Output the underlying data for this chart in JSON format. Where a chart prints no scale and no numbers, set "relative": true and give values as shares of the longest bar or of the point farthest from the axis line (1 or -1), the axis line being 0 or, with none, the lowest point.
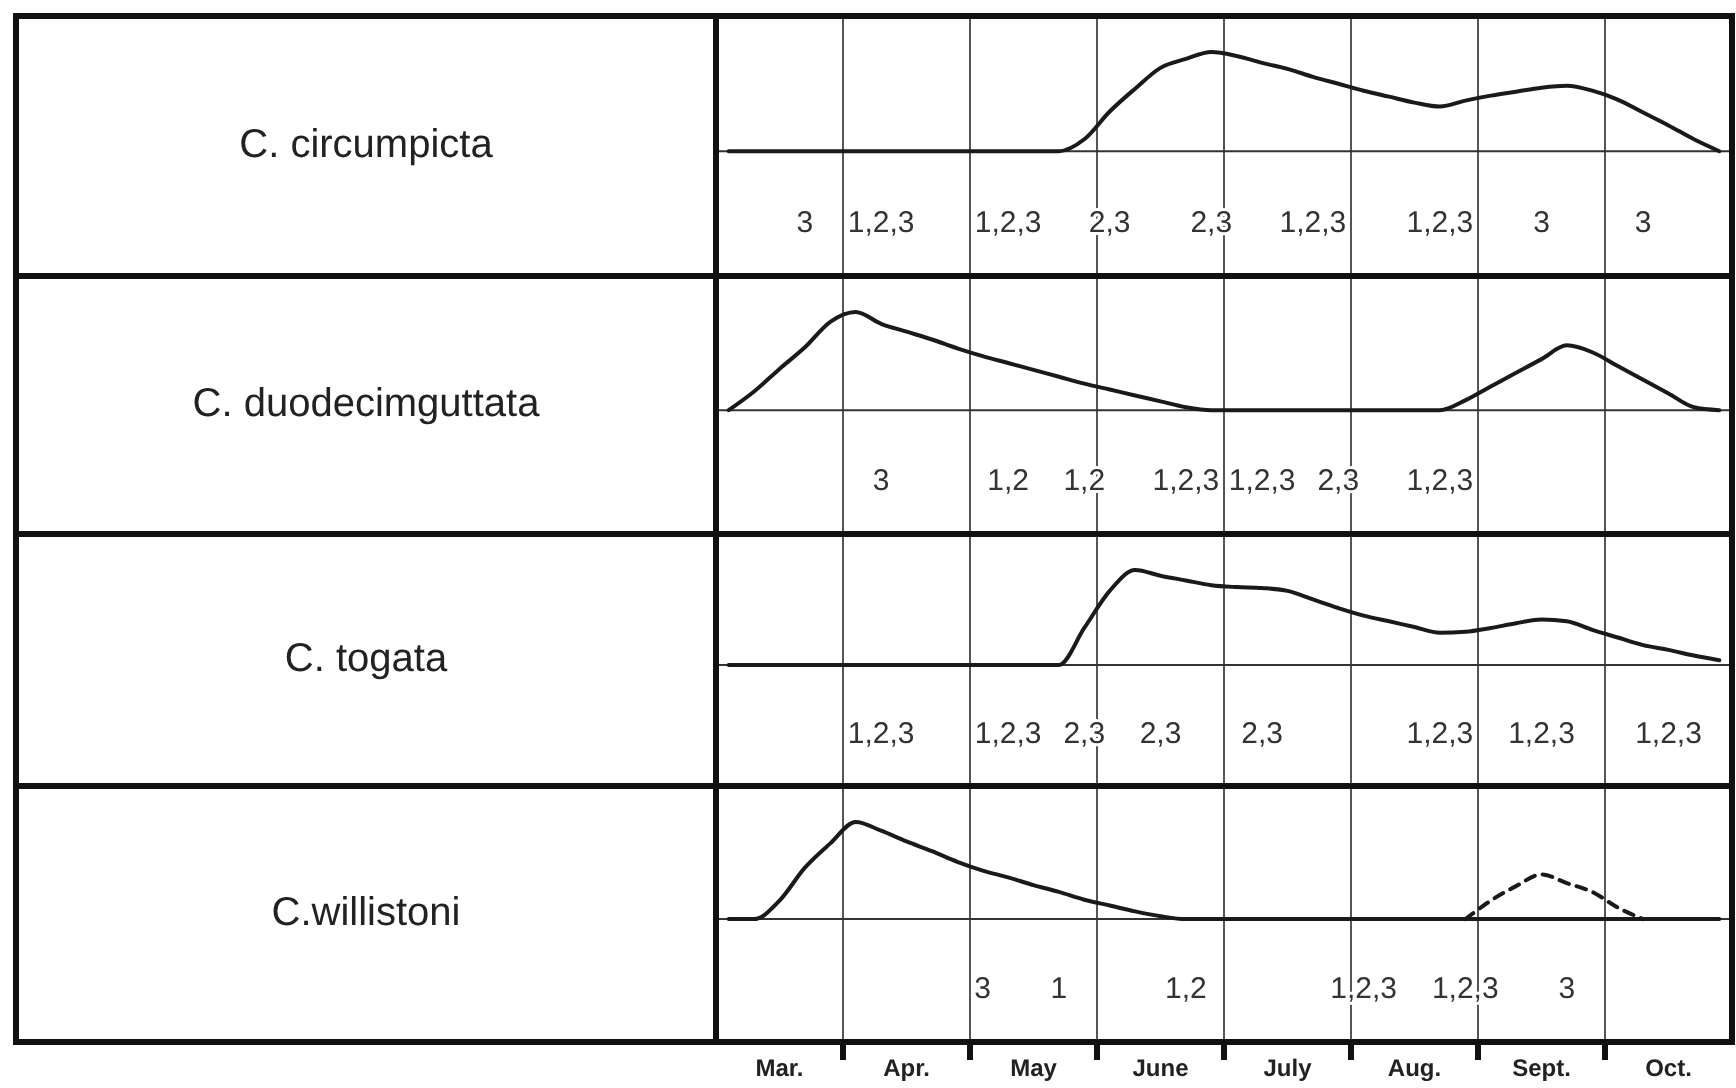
{
  "chart_data": [
    {
      "type": "line",
      "ylabel": "C. circumpicta",
      "relative": true,
      "grid": "x",
      "line_style": "solid",
      "categories": [
        null,
        null,
        null,
        "3",
        null,
        null,
        "1,2,3",
        null,
        null,
        null,
        null,
        "1,2,3",
        null,
        null,
        null,
        "2,3",
        null,
        null,
        null,
        "2,3",
        null,
        null,
        null,
        "1,2,3",
        null,
        null,
        null,
        null,
        "1,2,3",
        null,
        null,
        null,
        "3",
        null,
        null,
        null,
        "3",
        null,
        null,
        null
      ],
      "series": [
        {
          "color": "#1a1a1a",
          "values": [
            0,
            0,
            0,
            0,
            0,
            0,
            0,
            0,
            0,
            0,
            0,
            0,
            0,
            0,
            0.12,
            0.4,
            0.63,
            0.84,
            0.93,
            1,
            0.96,
            0.89,
            0.83,
            0.75,
            0.68,
            0.61,
            0.55,
            0.49,
            0.45,
            0.51,
            0.56,
            0.6,
            0.64,
            0.66,
            0.61,
            0.52,
            0.39,
            0.26,
            0.12,
            0
          ]
        }
      ]
    },
    {
      "type": "line",
      "ylabel": "C. duodecimguttata",
      "relative": true,
      "grid": "x",
      "line_style": "solid",
      "categories": [
        null,
        null,
        null,
        null,
        null,
        null,
        "3",
        null,
        null,
        null,
        null,
        "1,2",
        null,
        null,
        "1,2",
        null,
        null,
        null,
        "1,2,3",
        null,
        null,
        "1,2,3",
        null,
        null,
        "2,3",
        null,
        null,
        null,
        "1,2,3",
        null,
        null,
        null,
        null,
        null,
        null,
        null,
        null,
        null,
        null,
        null
      ],
      "series": [
        {
          "color": "#1a1a1a",
          "values": [
            0,
            0.19,
            0.42,
            0.64,
            0.9,
            1,
            0.88,
            0.8,
            0.72,
            0.63,
            0.55,
            0.48,
            0.41,
            0.34,
            0.27,
            0.21,
            0.15,
            0.09,
            0.03,
            0,
            0,
            0,
            0,
            0,
            0,
            0,
            0,
            0,
            0,
            0.1,
            0.24,
            0.38,
            0.52,
            0.66,
            0.59,
            0.45,
            0.31,
            0.17,
            0.03,
            0
          ]
        }
      ]
    },
    {
      "type": "line",
      "ylabel": "C. togata",
      "relative": true,
      "grid": "x",
      "line_style": "solid",
      "categories": [
        null,
        null,
        null,
        null,
        null,
        null,
        "1,2,3",
        null,
        null,
        null,
        null,
        "1,2,3",
        null,
        null,
        "2,3",
        null,
        null,
        "2,3",
        null,
        null,
        null,
        "2,3",
        null,
        null,
        null,
        null,
        null,
        null,
        "1,2,3",
        null,
        null,
        null,
        "1,2,3",
        null,
        null,
        null,
        null,
        "1,2,3",
        null,
        null
      ],
      "series": [
        {
          "color": "#1a1a1a",
          "values": [
            0,
            0,
            0,
            0,
            0,
            0,
            0,
            0,
            0,
            0,
            0,
            0,
            0,
            0,
            0.39,
            0.78,
            1,
            0.94,
            0.89,
            0.84,
            0.82,
            0.81,
            0.78,
            0.69,
            0.6,
            0.52,
            0.46,
            0.4,
            0.34,
            0.35,
            0.39,
            0.44,
            0.48,
            0.46,
            0.37,
            0.29,
            0.21,
            0.16,
            0.1,
            0.05
          ]
        }
      ]
    },
    {
      "type": "line",
      "ylabel": "C.willistoni",
      "relative": true,
      "grid": "x",
      "line_style": "solid",
      "categories": [
        null,
        null,
        null,
        null,
        null,
        null,
        null,
        null,
        null,
        null,
        "3",
        null,
        null,
        "1",
        null,
        null,
        null,
        null,
        "1,2",
        null,
        null,
        null,
        null,
        null,
        null,
        "1,2,3",
        null,
        null,
        null,
        "1,2,3",
        null,
        null,
        null,
        "3",
        null,
        null,
        null,
        null,
        null,
        null
      ],
      "series": [
        {
          "color": "#1a1a1a",
          "values": [
            0,
            0,
            0.19,
            0.53,
            0.78,
            1,
            0.91,
            0.8,
            0.7,
            0.59,
            0.5,
            0.43,
            0.35,
            0.28,
            0.2,
            0.14,
            0.08,
            0.03,
            0,
            0,
            0,
            0,
            0,
            0,
            0,
            0,
            0,
            0,
            0,
            0,
            0,
            0,
            0,
            0,
            0,
            0,
            0,
            0,
            0,
            0
          ]
        },
        {
          "color": "#1a1a1a",
          "line_style": "dashed",
          "values": [
            null,
            null,
            null,
            null,
            null,
            null,
            null,
            null,
            null,
            null,
            null,
            null,
            null,
            null,
            null,
            null,
            null,
            null,
            null,
            null,
            null,
            null,
            null,
            null,
            null,
            null,
            null,
            null,
            null,
            0,
            0.19,
            0.34,
            0.46,
            0.37,
            0.28,
            0.12,
            0,
            null,
            null,
            null
          ]
        }
      ]
    },
    {
      "type": "other",
      "annotations": [
        "Mar.",
        "Apr.",
        "May",
        "June",
        "July",
        "Aug.",
        "Sept.",
        "Oct."
      ]
    }
  ]
}
